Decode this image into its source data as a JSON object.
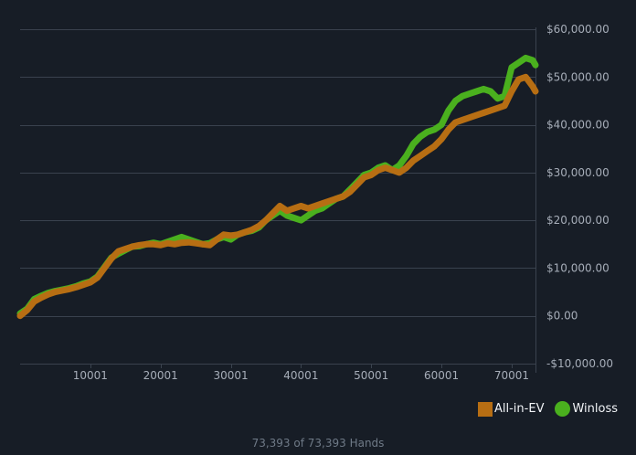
{
  "chart_data": {
    "type": "line",
    "title": "",
    "xlabel": "",
    "ylabel": "",
    "xlim": [
      1,
      73393
    ],
    "ylim": [
      -10000,
      60000
    ],
    "x_ticks": [
      10001,
      20001,
      30001,
      40001,
      50001,
      60001,
      70001
    ],
    "x_tick_labels": [
      "10001",
      "20001",
      "30001",
      "40001",
      "50001",
      "60001",
      "70001"
    ],
    "y_ticks": [
      -10000,
      0,
      10000,
      20000,
      30000,
      40000,
      50000,
      60000
    ],
    "y_tick_labels": [
      "-$10,000.00",
      "$0.00",
      "$10,000.00",
      "$20,000.00",
      "$30,000.00",
      "$40,000.00",
      "$50,000.00",
      "$60,000.00"
    ],
    "grid": true,
    "legend_position": "bottom-right",
    "series": [
      {
        "name": "All-in-EV",
        "color": "#b76e13",
        "marker": "square",
        "x": [
          1,
          1000,
          2000,
          3000,
          4000,
          5000,
          6000,
          7000,
          8000,
          9000,
          10000,
          11000,
          12000,
          13000,
          14000,
          15000,
          16000,
          17000,
          18000,
          19000,
          20000,
          21000,
          22000,
          23000,
          24000,
          25000,
          26000,
          27000,
          28000,
          29000,
          30000,
          31000,
          32000,
          33000,
          34000,
          35000,
          36000,
          37000,
          38000,
          39000,
          40000,
          41000,
          42000,
          43000,
          44000,
          45000,
          46000,
          47000,
          48000,
          49000,
          50000,
          51000,
          52000,
          53000,
          54000,
          55000,
          56000,
          57000,
          58000,
          59000,
          60000,
          61000,
          62000,
          63000,
          64000,
          65000,
          66000,
          67000,
          68000,
          69000,
          70000,
          71000,
          72000,
          73000,
          73393
        ],
        "y": [
          0,
          1200,
          3000,
          3800,
          4500,
          5000,
          5300,
          5600,
          6000,
          6500,
          7000,
          8000,
          10000,
          12000,
          13500,
          14000,
          14500,
          14800,
          15000,
          15000,
          14800,
          15200,
          15000,
          15300,
          15400,
          15200,
          15000,
          14800,
          16000,
          17000,
          16800,
          17000,
          17500,
          18000,
          18800,
          20000,
          21500,
          23000,
          22000,
          22500,
          23000,
          22500,
          23000,
          23500,
          24000,
          24500,
          25000,
          26000,
          27500,
          29000,
          29500,
          30500,
          31000,
          30500,
          30000,
          31000,
          32500,
          33500,
          34500,
          35500,
          37000,
          39000,
          40500,
          41000,
          41500,
          42000,
          42500,
          43000,
          43500,
          44000,
          47000,
          49500,
          50000,
          48000,
          47000
        ]
      },
      {
        "name": "Winloss",
        "color": "#4ab01e",
        "marker": "circle",
        "x": [
          1,
          1000,
          2000,
          3000,
          4000,
          5000,
          6000,
          7000,
          8000,
          9000,
          10000,
          11000,
          12000,
          13000,
          14000,
          15000,
          16000,
          17000,
          18000,
          19000,
          20000,
          21000,
          22000,
          23000,
          24000,
          25000,
          26000,
          27000,
          28000,
          29000,
          30000,
          31000,
          32000,
          33000,
          34000,
          35000,
          36000,
          37000,
          38000,
          39000,
          40000,
          41000,
          42000,
          43000,
          44000,
          45000,
          46000,
          47000,
          48000,
          49000,
          50000,
          51000,
          52000,
          53000,
          54000,
          55000,
          56000,
          57000,
          58000,
          59000,
          60000,
          61000,
          62000,
          63000,
          64000,
          65000,
          66000,
          67000,
          68000,
          69000,
          70000,
          71000,
          72000,
          73000,
          73393
        ],
        "y": [
          500,
          1500,
          3500,
          4200,
          4800,
          5200,
          5500,
          5800,
          6200,
          6800,
          7200,
          8200,
          10200,
          12200,
          13000,
          13800,
          14500,
          14600,
          15000,
          15300,
          15000,
          15500,
          16000,
          16500,
          16000,
          15500,
          15000,
          15200,
          16000,
          16500,
          16000,
          17000,
          17500,
          17800,
          18500,
          20000,
          21000,
          22000,
          21000,
          20500,
          20000,
          21000,
          22000,
          22500,
          23500,
          24500,
          25000,
          26500,
          28000,
          29500,
          30000,
          31000,
          31500,
          30500,
          31500,
          33500,
          36000,
          37500,
          38500,
          39000,
          40000,
          43000,
          45000,
          46000,
          46500,
          47000,
          47500,
          47000,
          45500,
          46000,
          52000,
          53000,
          54000,
          53500,
          52500
        ]
      }
    ]
  },
  "footer": {
    "hands_text": "73,393 of 73,393 Hands"
  }
}
